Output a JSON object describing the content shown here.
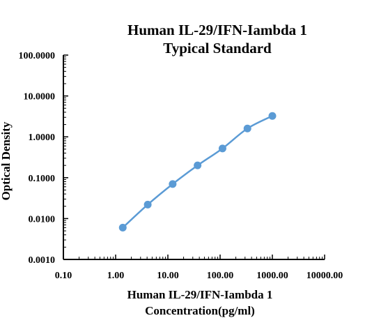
{
  "chart_data": {
    "type": "scatter",
    "title": [
      "Human IL-29/IFN-Iambda 1",
      "Typical Standard"
    ],
    "xlabel": [
      "Human IL-29/IFN-Iambda 1",
      "Concentration(pg/ml)"
    ],
    "ylabel": "Optical Density",
    "x_scale": "log",
    "y_scale": "log",
    "xlim": [
      0.1,
      10000
    ],
    "ylim": [
      0.001,
      100
    ],
    "x_ticks": [
      0.1,
      1,
      10,
      100,
      1000,
      10000
    ],
    "x_tick_labels": [
      "0.10",
      "1.00",
      "10.00",
      "100.00",
      "1000.00",
      "10000.00"
    ],
    "y_ticks": [
      0.001,
      0.01,
      0.1,
      1,
      10,
      100
    ],
    "y_tick_labels": [
      "0.0010",
      "0.0100",
      "0.1000",
      "1.0000",
      "10.0000",
      "100.0000"
    ],
    "grid": false,
    "series": [
      {
        "color": "#5b9bd5",
        "points": [
          {
            "x": 1.37,
            "y": 0.006
          },
          {
            "x": 4.12,
            "y": 0.022
          },
          {
            "x": 12.35,
            "y": 0.07
          },
          {
            "x": 37.04,
            "y": 0.2
          },
          {
            "x": 111.1,
            "y": 0.52
          },
          {
            "x": 333.3,
            "y": 1.6
          },
          {
            "x": 1000,
            "y": 3.25
          }
        ]
      }
    ]
  }
}
